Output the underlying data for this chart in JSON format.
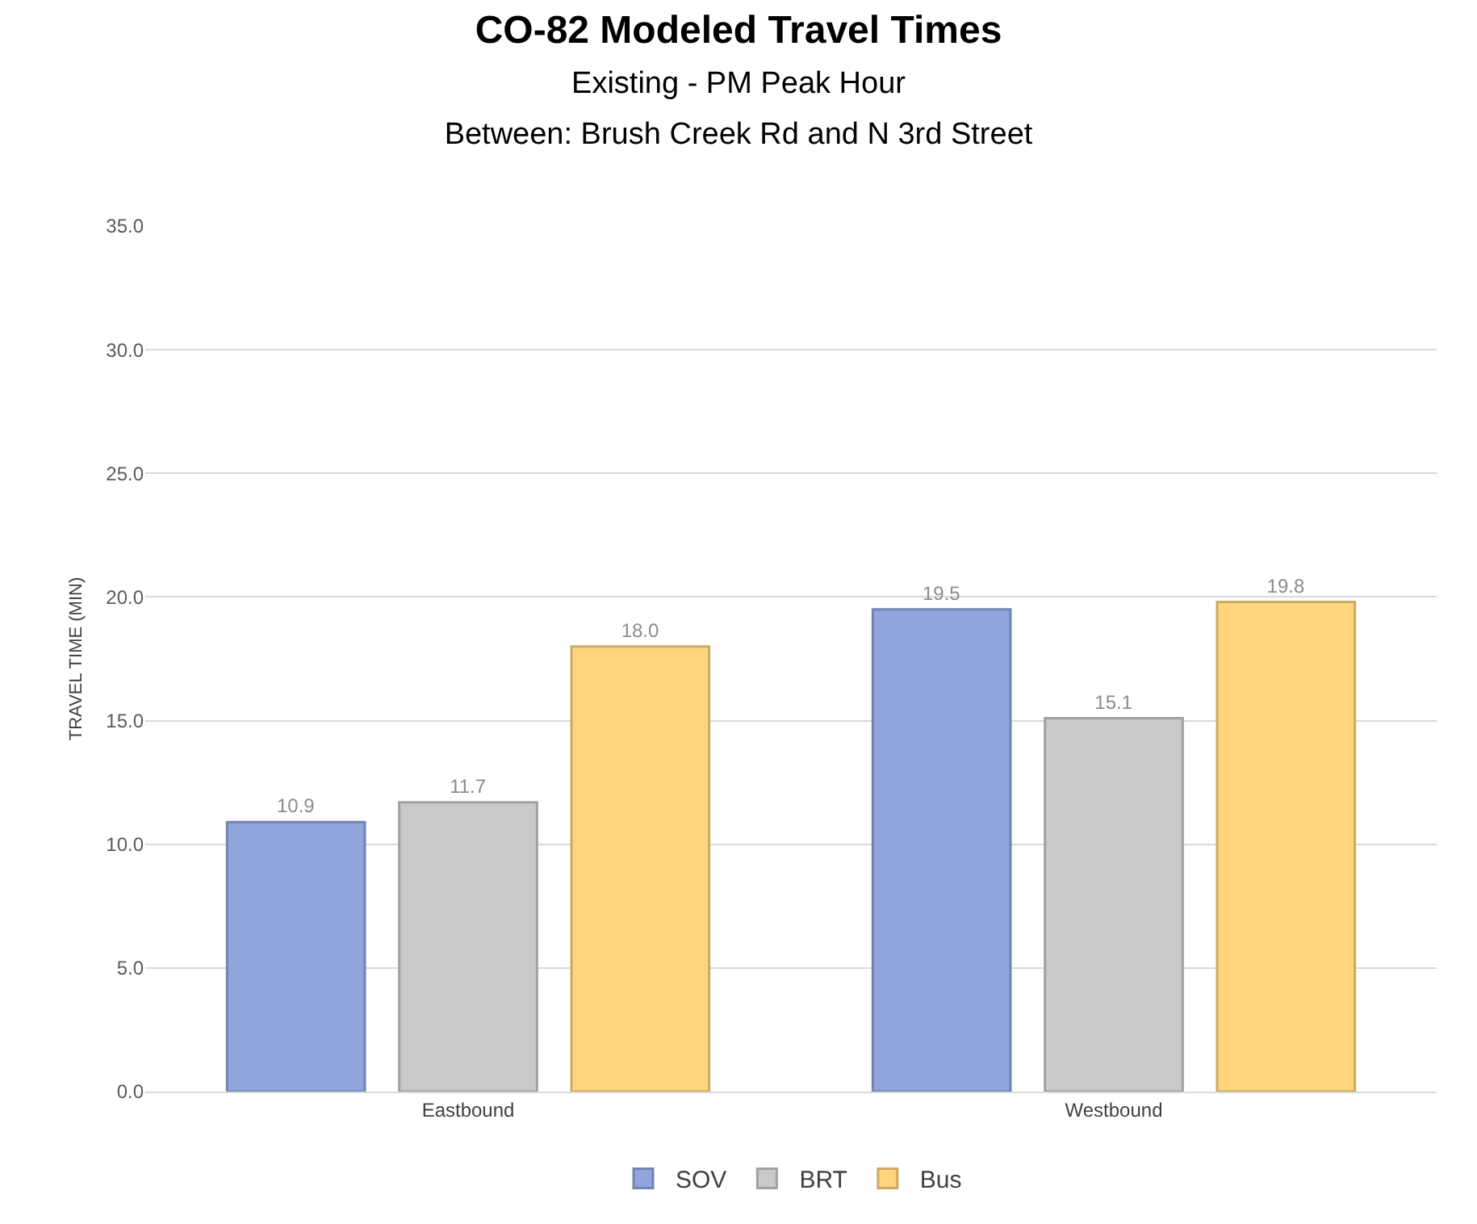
{
  "chart_data": {
    "type": "bar",
    "title": "CO-82 Modeled Travel Times",
    "subtitle": "Existing - PM Peak Hour\nBetween: Brush Creek Rd and N 3rd Street",
    "ylabel": "TRAVEL TIME (MIN)",
    "categories": [
      "Eastbound",
      "Westbound"
    ],
    "series": [
      {
        "name": "SOV",
        "color": "#8fa5dc",
        "values": [
          10.9,
          19.5
        ],
        "value_labels": [
          "10.9",
          "19.5"
        ]
      },
      {
        "name": "BRT",
        "color": "#c9c9c9",
        "values": [
          11.7,
          15.1
        ],
        "value_labels": [
          "11.7",
          "15.1"
        ]
      },
      {
        "name": "Bus",
        "color": "#fed47c",
        "values": [
          18.0,
          19.8
        ],
        "value_labels": [
          "18.0",
          "19.8"
        ]
      }
    ],
    "ylim": [
      0,
      35
    ],
    "yticks": [
      {
        "value": 0,
        "label": "0.0"
      },
      {
        "value": 5,
        "label": "5.0"
      },
      {
        "value": 10,
        "label": "10.0"
      },
      {
        "value": 15,
        "label": "15.0"
      },
      {
        "value": 20,
        "label": "20.0"
      },
      {
        "value": 25,
        "label": "25.0"
      },
      {
        "value": 30,
        "label": "30.0"
      },
      {
        "value": 35,
        "label": "35.0"
      }
    ],
    "grid": "y",
    "legend": "bottom"
  }
}
